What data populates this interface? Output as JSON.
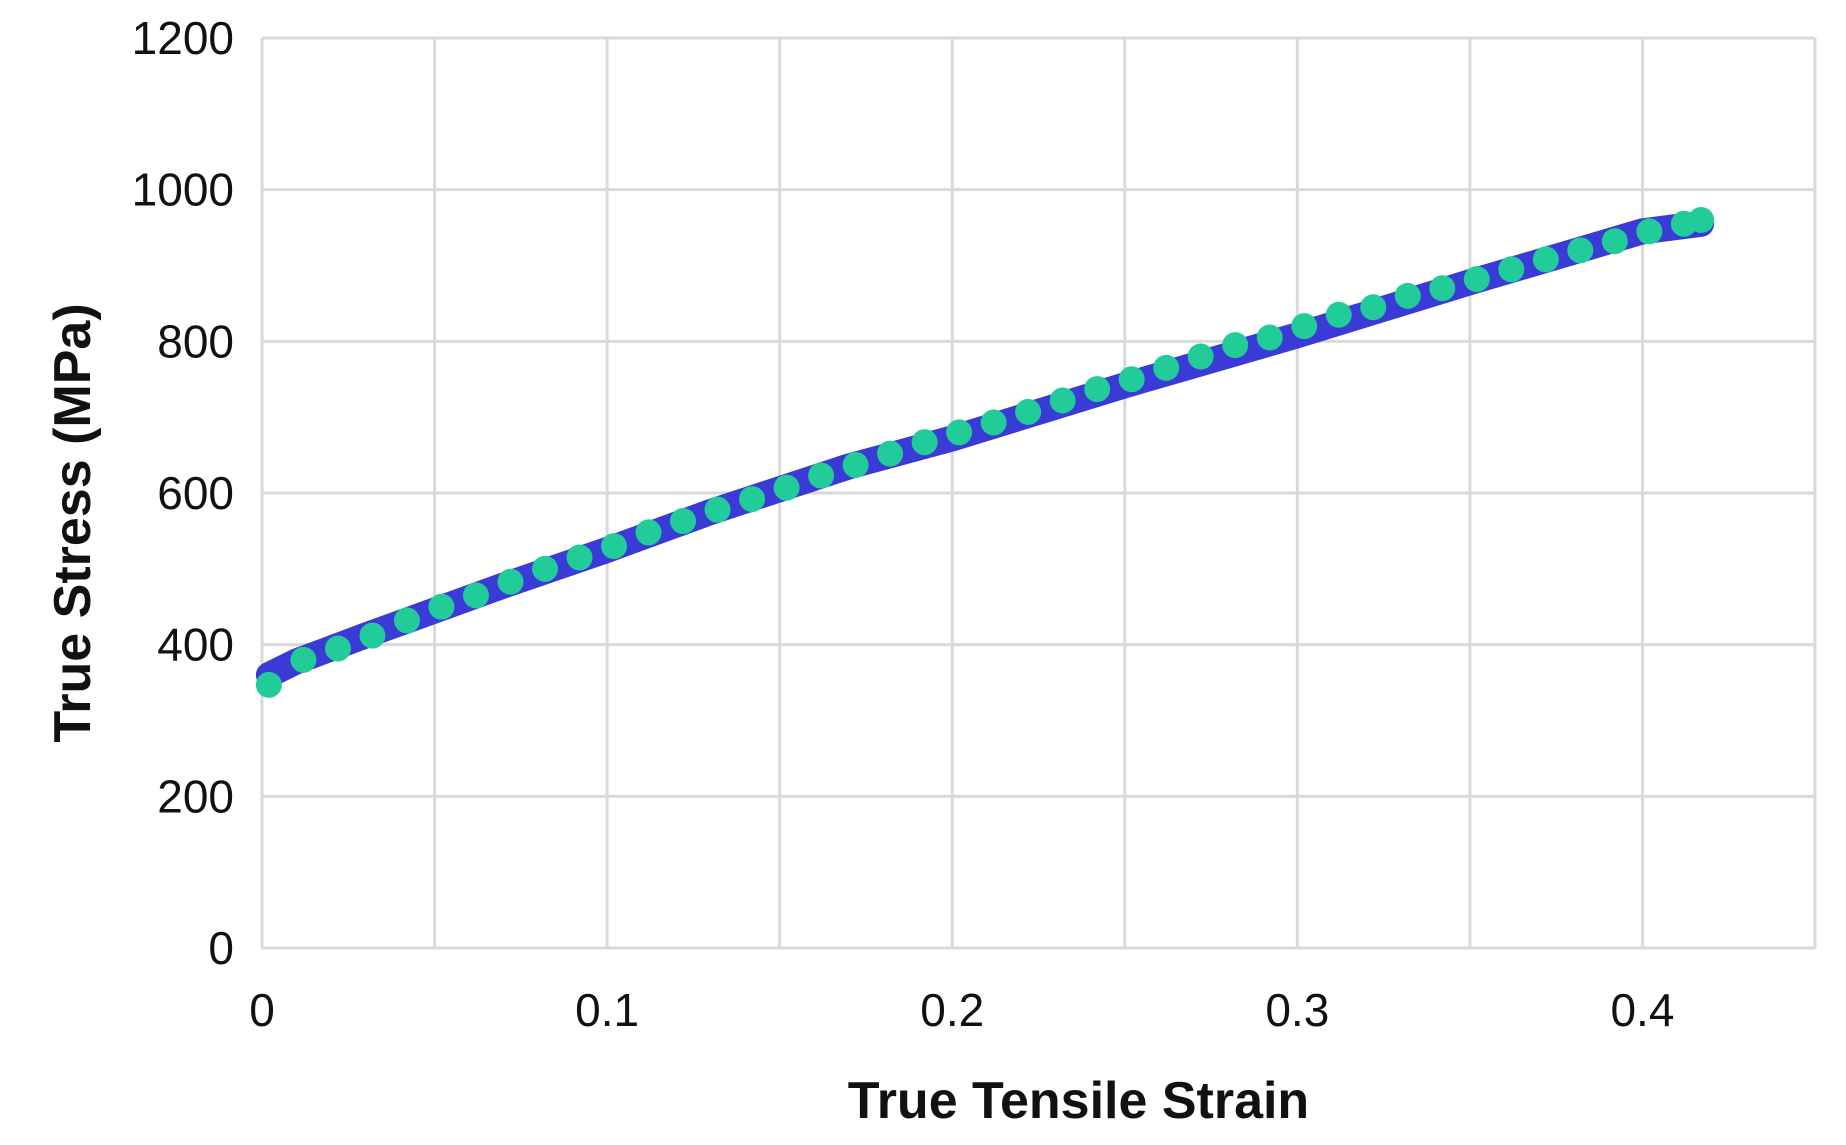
{
  "chart_data": {
    "type": "scatter",
    "title": "",
    "xlabel": "True Tensile Strain",
    "ylabel": "True Stress (MPa)",
    "xlim": [
      0,
      0.45
    ],
    "ylim": [
      0,
      1200
    ],
    "x_ticks": [
      0,
      0.1,
      0.2,
      0.3,
      0.4
    ],
    "x_tick_labels": [
      "0",
      "0.1",
      "0.2",
      "0.3",
      "0.4"
    ],
    "y_ticks": [
      0,
      200,
      400,
      600,
      800,
      1000,
      1200
    ],
    "y_tick_labels": [
      "0",
      "200",
      "400",
      "600",
      "800",
      "1000",
      "1200"
    ],
    "grid": true,
    "legend": "none",
    "series": [
      {
        "style": "thick-line",
        "color": "#3a3ad6",
        "x": [
          0.002,
          0.01,
          0.02,
          0.03,
          0.05,
          0.07,
          0.1,
          0.13,
          0.15,
          0.17,
          0.2,
          0.25,
          0.3,
          0.35,
          0.4,
          0.417
        ],
        "y": [
          360,
          378,
          395,
          412,
          445,
          478,
          525,
          575,
          605,
          635,
          672,
          742,
          808,
          878,
          945,
          955
        ]
      },
      {
        "style": "markers",
        "color": "#22cc99",
        "x": [
          0.002,
          0.012,
          0.022,
          0.032,
          0.042,
          0.052,
          0.062,
          0.072,
          0.082,
          0.092,
          0.102,
          0.112,
          0.122,
          0.132,
          0.142,
          0.152,
          0.162,
          0.172,
          0.182,
          0.192,
          0.202,
          0.212,
          0.222,
          0.232,
          0.242,
          0.252,
          0.262,
          0.272,
          0.282,
          0.292,
          0.302,
          0.312,
          0.322,
          0.332,
          0.342,
          0.352,
          0.362,
          0.372,
          0.382,
          0.392,
          0.402,
          0.412,
          0.417
        ],
        "y": [
          347,
          380,
          395,
          412,
          432,
          450,
          465,
          483,
          500,
          515,
          530,
          548,
          563,
          578,
          592,
          607,
          623,
          637,
          652,
          667,
          680,
          693,
          707,
          722,
          737,
          750,
          765,
          780,
          795,
          805,
          820,
          835,
          845,
          860,
          870,
          882,
          895,
          908,
          920,
          932,
          945,
          955,
          960
        ]
      }
    ]
  }
}
